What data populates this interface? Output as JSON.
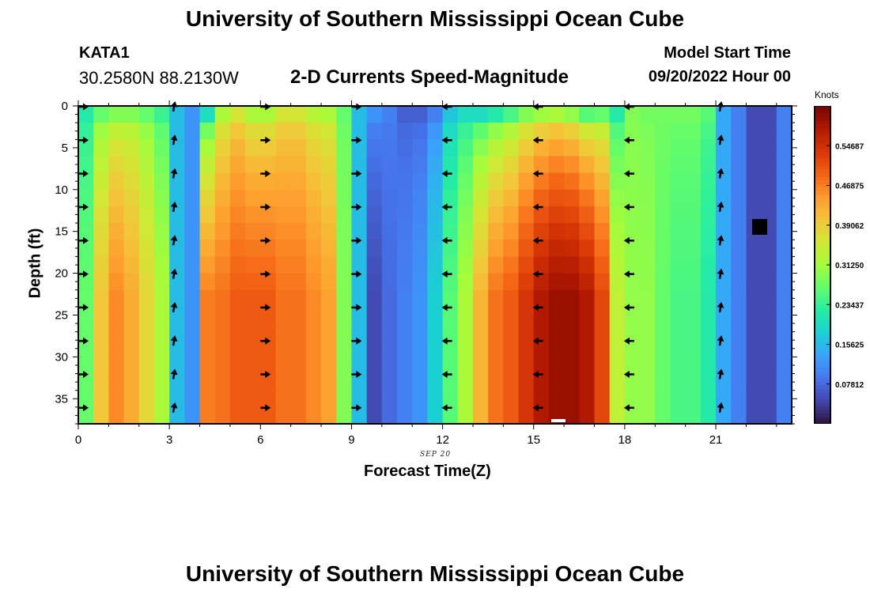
{
  "header": {
    "title": "University of Southern Mississippi Ocean Cube",
    "station": "KATA1",
    "coords": "30.2580N  88.2130W",
    "plot_title": "2-D Currents Speed-Magnitude",
    "model_start_label": "Model Start Time",
    "model_start_value": "09/20/2022 Hour 00"
  },
  "footer": {
    "title": "University of Southern Mississippi Ocean Cube"
  },
  "chart_data": {
    "type": "heatmap",
    "title": "2-D Currents Speed-Magnitude",
    "xlabel": "Forecast Time(Z)",
    "ylabel": "Depth (ft)",
    "date_annotation": "SEP 20",
    "x_ticks": [
      0,
      3,
      6,
      9,
      12,
      15,
      18,
      21
    ],
    "y_ticks": [
      0,
      5,
      10,
      15,
      20,
      25,
      30,
      35
    ],
    "xlim": [
      0,
      23.5
    ],
    "ylim": [
      38,
      0
    ],
    "hours": [
      0,
      0.5,
      1,
      1.5,
      2,
      2.5,
      3,
      3.5,
      4,
      4.5,
      5,
      5.5,
      6,
      6.5,
      7,
      7.5,
      8,
      8.5,
      9,
      9.5,
      10,
      10.5,
      11,
      11.5,
      12,
      12.5,
      13,
      13.5,
      14,
      14.5,
      15,
      15.5,
      16,
      16.5,
      17,
      17.5,
      18,
      18.5,
      19,
      19.5,
      20,
      20.5,
      21,
      21.5,
      22,
      22.5,
      23
    ],
    "depth_layers_ft": [
      0,
      2,
      4,
      6,
      8,
      10,
      12,
      14,
      16,
      18,
      20,
      22,
      24,
      26,
      28,
      30,
      32,
      34,
      36
    ],
    "top_speed_knots": [
      0.22,
      0.27,
      0.29,
      0.29,
      0.27,
      0.24,
      0.16,
      0.12,
      0.2,
      0.32,
      0.36,
      0.32,
      0.32,
      0.36,
      0.36,
      0.33,
      0.32,
      0.27,
      0.16,
      0.12,
      0.1,
      0.07,
      0.07,
      0.1,
      0.17,
      0.2,
      0.2,
      0.22,
      0.25,
      0.29,
      0.31,
      0.32,
      0.3,
      0.26,
      0.27,
      0.22,
      0.29,
      0.28,
      0.28,
      0.28,
      0.28,
      0.26,
      0.14,
      0.1,
      0.05,
      0.05,
      0.1
    ],
    "bottom_speed_knots": [
      0.27,
      0.4,
      0.46,
      0.43,
      0.38,
      0.32,
      0.16,
      0.12,
      0.47,
      0.48,
      0.5,
      0.5,
      0.5,
      0.48,
      0.48,
      0.46,
      0.44,
      0.29,
      0.16,
      0.05,
      0.08,
      0.1,
      0.12,
      0.18,
      0.26,
      0.32,
      0.42,
      0.48,
      0.5,
      0.54,
      0.58,
      0.6,
      0.6,
      0.58,
      0.52,
      0.34,
      0.3,
      0.3,
      0.27,
      0.25,
      0.25,
      0.22,
      0.14,
      0.1,
      0.05,
      0.05,
      0.1
    ],
    "arrow_hours": [
      0,
      3,
      6,
      9,
      12,
      15,
      18,
      21
    ],
    "arrow_depths_ft": [
      0,
      4,
      8,
      12,
      16,
      20,
      24,
      28,
      32,
      36
    ],
    "arrow_directions": [
      "east",
      "north",
      "east",
      "east",
      "west",
      "west",
      "west",
      "north"
    ],
    "colorbar": {
      "unit": "Knots",
      "range": [
        0,
        0.625
      ],
      "tick_values": [
        0.078125,
        0.15625,
        0.234375,
        0.3125,
        0.390625,
        0.46875,
        0.546875
      ],
      "tick_labels": [
        "0.07812",
        "0.15625",
        "0.23437",
        "0.31250",
        "0.39062",
        "0.46875",
        "0.54687"
      ]
    }
  },
  "colors": {
    "colormap": [
      "#30123b",
      "#4145ab",
      "#4675ed",
      "#39a2fc",
      "#1bcfd4",
      "#24eca6",
      "#61fc6c",
      "#a4fc3b",
      "#d1e834",
      "#f3c63a",
      "#fe9b2d",
      "#f36315",
      "#d93806",
      "#b11901",
      "#7a0402"
    ]
  }
}
